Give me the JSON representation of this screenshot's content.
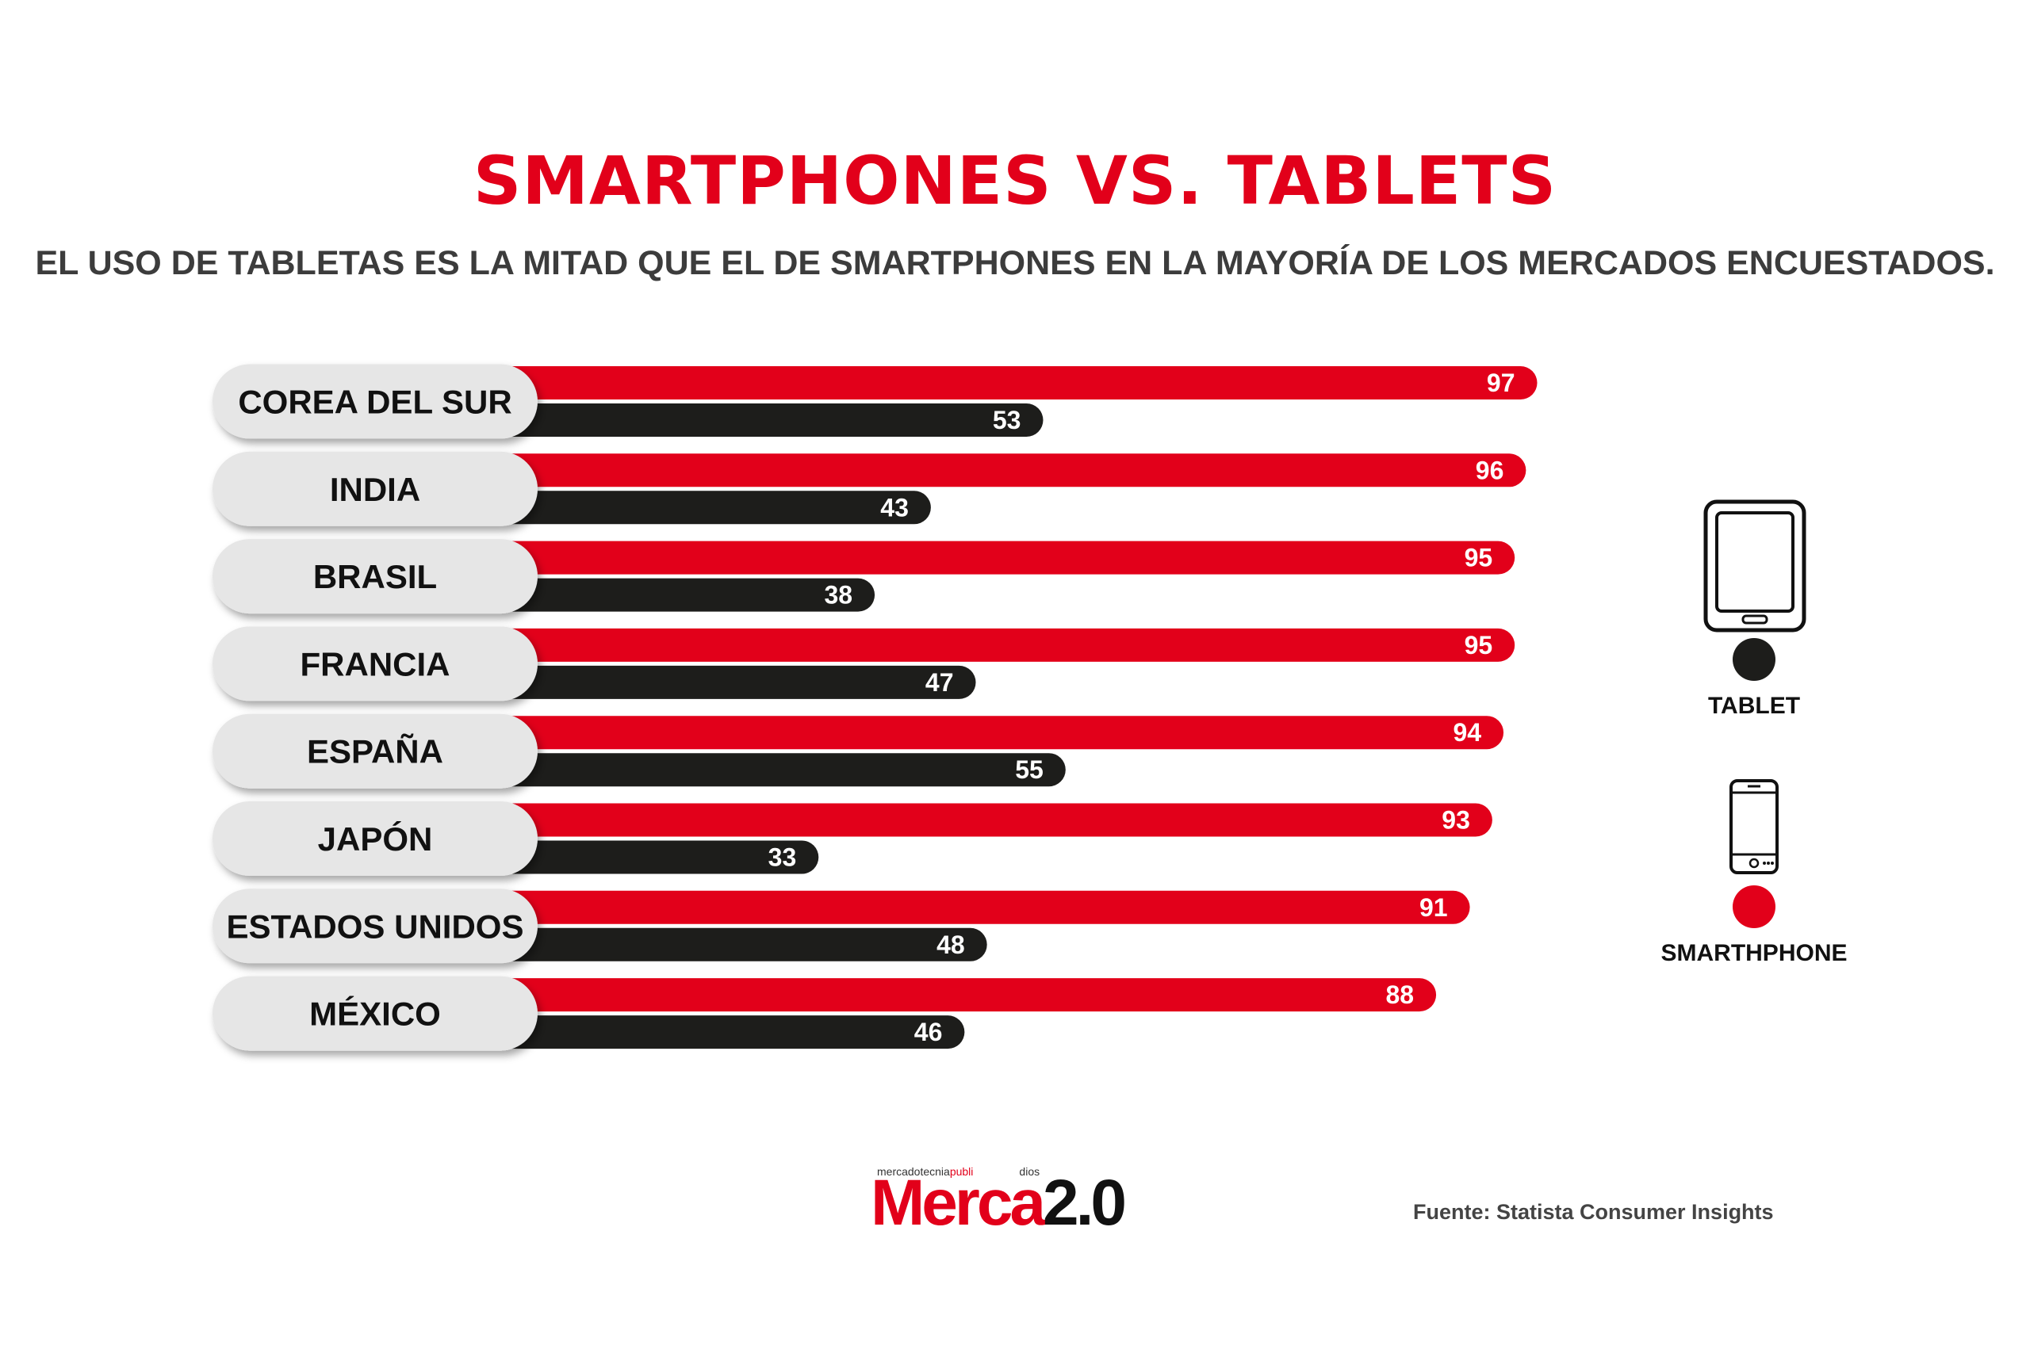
{
  "title": "SMARTPHONES VS. TABLETS",
  "subtitle": "EL USO DE TABLETAS ES LA MITAD QUE EL DE SMARTPHONES EN LA MAYORÍA DE LOS MERCADOS ENCUESTADOS.",
  "colors": {
    "smartphone": "#e2001a",
    "tablet": "#1d1d1b",
    "label_pill": "#e6e6e6"
  },
  "legend": {
    "tablet": {
      "label": "TABLET",
      "icon": "tablet-icon"
    },
    "smartphone": {
      "label": "SMARTHPHONE",
      "icon": "smartphone-icon"
    }
  },
  "chart_data": {
    "type": "bar",
    "orientation": "horizontal",
    "categories": [
      "COREA DEL SUR",
      "INDIA",
      "BRASIL",
      "FRANCIA",
      "ESPAÑA",
      "JAPÓN",
      "ESTADOS UNIDOS",
      "MÉXICO"
    ],
    "series": [
      {
        "name": "SMARTHPHONE",
        "color": "#e2001a",
        "values": [
          97,
          96,
          95,
          95,
          94,
          93,
          91,
          88
        ]
      },
      {
        "name": "TABLET",
        "color": "#1d1d1b",
        "values": [
          53,
          43,
          38,
          47,
          55,
          33,
          48,
          46
        ]
      }
    ],
    "title": "SMARTPHONES VS. TABLETS",
    "legend_position": "right",
    "grid": false
  },
  "logo": {
    "small_a": "mercadotecnia",
    "small_b": "publi",
    "small_c": "dios",
    "main_a": "Merca",
    "main_b": "2.0"
  },
  "source": "Fuente:  Statista Consumer Insights"
}
